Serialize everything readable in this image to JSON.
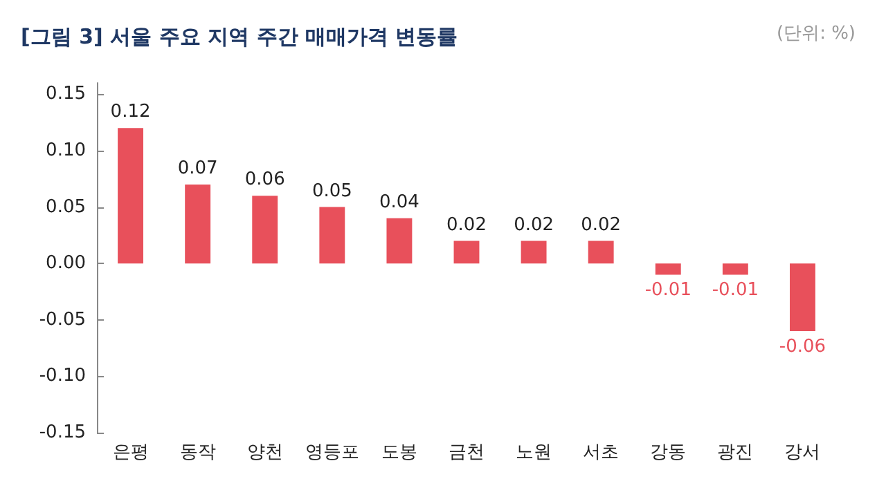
{
  "chart_data": {
    "type": "bar",
    "title": "[그림 3] 서울 주요 지역 주간 매매가격 변동률",
    "annotations": [
      "(단위: %)"
    ],
    "categories": [
      "은평",
      "동작",
      "양천",
      "영등포",
      "도봉",
      "금천",
      "노원",
      "서초",
      "강동",
      "광진",
      "강서"
    ],
    "values": [
      0.12,
      0.07,
      0.06,
      0.05,
      0.04,
      0.02,
      0.02,
      0.02,
      -0.01,
      -0.01,
      -0.06
    ],
    "color": "#e8505b",
    "data_labels": true,
    "grid": false,
    "ylim": [
      -0.15,
      0.16
    ],
    "yticks": [
      {
        "value": -0.15,
        "label": "-0.15"
      },
      {
        "value": -0.1,
        "label": "-0.10"
      },
      {
        "value": -0.05,
        "label": "-0.05"
      },
      {
        "value": 0,
        "label": "0.00"
      },
      {
        "value": 0.05,
        "label": "0.05"
      },
      {
        "value": 0.1,
        "label": "0.10"
      },
      {
        "value": 0.15,
        "label": "0.15"
      }
    ]
  }
}
